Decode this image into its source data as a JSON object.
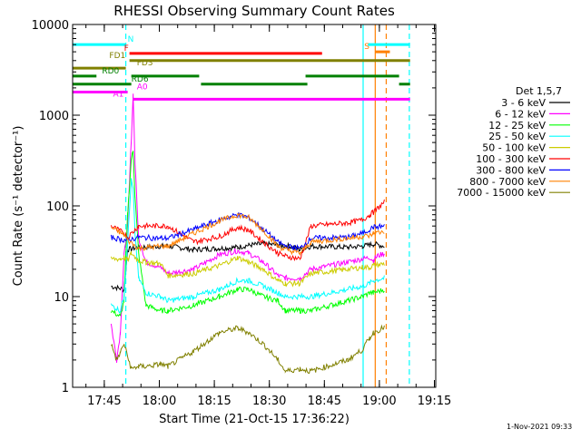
{
  "chart_data": {
    "type": "line",
    "title": "RHESSI Observing Summary Count Rates",
    "xlabel": "Start Time (21-Oct-15 17:36:22)",
    "ylabel": "Count Rate (s⁻¹ detector⁻¹)",
    "ylog": true,
    "ylim": [
      1,
      10000
    ],
    "xlim_minutes_after_start": [
      0,
      99
    ],
    "x_tick_labels": [
      "17:45",
      "18:00",
      "18:15",
      "18:30",
      "18:45",
      "19:00",
      "19:15"
    ],
    "y_tick_labels": [
      "1",
      "10",
      "100",
      "1000",
      "10000"
    ],
    "legend_title": "Det 1,5,7",
    "legend_placement": "right",
    "timestamp": "1-Nov-2021 09:33",
    "series": [
      {
        "name": "3 - 6 keV",
        "color": "#000000",
        "points": [
          [
            10.5,
            13
          ],
          [
            14,
            12
          ],
          [
            15,
            33
          ],
          [
            18,
            35
          ],
          [
            24,
            36
          ],
          [
            26,
            36
          ],
          [
            33,
            33
          ],
          [
            40,
            34
          ],
          [
            45,
            35
          ],
          [
            48,
            37
          ],
          [
            52,
            38
          ],
          [
            56,
            37
          ],
          [
            59,
            36
          ],
          [
            62,
            33
          ],
          [
            65,
            36
          ],
          [
            75,
            35
          ],
          [
            79,
            36
          ],
          [
            81,
            37
          ],
          [
            82,
            38
          ],
          [
            85,
            36
          ]
        ]
      },
      {
        "name": "6 - 12 keV",
        "color": "#ff00ff",
        "points": [
          [
            10.5,
            5
          ],
          [
            12,
            2
          ],
          [
            13,
            4
          ],
          [
            14,
            28
          ],
          [
            15,
            60
          ],
          [
            15.8,
            350
          ],
          [
            16.5,
            1700
          ],
          [
            17,
            300
          ],
          [
            18,
            45
          ],
          [
            20,
            24
          ],
          [
            24,
            21
          ],
          [
            26,
            18
          ],
          [
            33,
            20
          ],
          [
            40,
            29
          ],
          [
            45,
            32
          ],
          [
            48,
            30
          ],
          [
            52,
            24
          ],
          [
            56,
            17
          ],
          [
            58,
            16
          ],
          [
            62,
            16
          ],
          [
            65,
            20
          ],
          [
            75,
            24
          ],
          [
            79,
            26
          ],
          [
            81,
            27
          ],
          [
            82,
            25
          ],
          [
            83,
            28
          ],
          [
            85,
            30
          ]
        ]
      },
      {
        "name": "12 - 25 keV",
        "color": "#00ff00",
        "points": [
          [
            10.5,
            7
          ],
          [
            13,
            6
          ],
          [
            14,
            9
          ],
          [
            15,
            80
          ],
          [
            16,
            330
          ],
          [
            16.5,
            400
          ],
          [
            17,
            130
          ],
          [
            18,
            30
          ],
          [
            20,
            8
          ],
          [
            24,
            7
          ],
          [
            26,
            7
          ],
          [
            33,
            8
          ],
          [
            40,
            10
          ],
          [
            45,
            12
          ],
          [
            48,
            12
          ],
          [
            52,
            10
          ],
          [
            56,
            9
          ],
          [
            58,
            7
          ],
          [
            62,
            7
          ],
          [
            65,
            7
          ],
          [
            75,
            9
          ],
          [
            79,
            10
          ],
          [
            81,
            11
          ],
          [
            82,
            11
          ],
          [
            85,
            12
          ]
        ]
      },
      {
        "name": "25 - 50 keV",
        "color": "#00ffff",
        "points": [
          [
            10.5,
            8
          ],
          [
            13,
            7
          ],
          [
            14,
            10
          ],
          [
            15,
            40
          ],
          [
            16,
            190
          ],
          [
            16.5,
            150
          ],
          [
            17,
            50
          ],
          [
            18,
            16
          ],
          [
            20,
            11
          ],
          [
            24,
            10
          ],
          [
            26,
            9
          ],
          [
            33,
            10
          ],
          [
            40,
            12
          ],
          [
            45,
            15
          ],
          [
            48,
            15
          ],
          [
            52,
            13
          ],
          [
            56,
            11
          ],
          [
            58,
            10
          ],
          [
            62,
            10
          ],
          [
            65,
            10
          ],
          [
            75,
            12
          ],
          [
            79,
            13
          ],
          [
            81,
            14
          ],
          [
            82,
            15
          ],
          [
            85,
            16
          ]
        ]
      },
      {
        "name": "50 - 100 keV",
        "color": "#cccc00",
        "points": [
          [
            10.5,
            26
          ],
          [
            13,
            26
          ],
          [
            14,
            27
          ],
          [
            15,
            25
          ],
          [
            16,
            30
          ],
          [
            18,
            25
          ],
          [
            20,
            24
          ],
          [
            24,
            23
          ],
          [
            26,
            17
          ],
          [
            33,
            18
          ],
          [
            40,
            22
          ],
          [
            45,
            27
          ],
          [
            48,
            24
          ],
          [
            52,
            20
          ],
          [
            56,
            15
          ],
          [
            58,
            14
          ],
          [
            62,
            14
          ],
          [
            65,
            18
          ],
          [
            75,
            20
          ],
          [
            79,
            21
          ],
          [
            81,
            21
          ],
          [
            82,
            22
          ],
          [
            85,
            23
          ]
        ]
      },
      {
        "name": "100 - 300 keV",
        "color": "#ff0000",
        "points": [
          [
            10.5,
            60
          ],
          [
            14,
            50
          ],
          [
            15,
            45
          ],
          [
            18,
            60
          ],
          [
            24,
            60
          ],
          [
            26,
            60
          ],
          [
            33,
            40
          ],
          [
            40,
            46
          ],
          [
            45,
            58
          ],
          [
            48,
            54
          ],
          [
            52,
            40
          ],
          [
            56,
            30
          ],
          [
            58,
            28
          ],
          [
            62,
            26
          ],
          [
            65,
            60
          ],
          [
            75,
            65
          ],
          [
            79,
            70
          ],
          [
            81,
            80
          ],
          [
            82,
            85
          ],
          [
            85,
            110
          ]
        ]
      },
      {
        "name": "300 - 800 keV",
        "color": "#0000ff",
        "points": [
          [
            10.5,
            45
          ],
          [
            14,
            42
          ],
          [
            15,
            42
          ],
          [
            18,
            45
          ],
          [
            24,
            44
          ],
          [
            26,
            44
          ],
          [
            33,
            55
          ],
          [
            40,
            70
          ],
          [
            45,
            80
          ],
          [
            48,
            75
          ],
          [
            52,
            55
          ],
          [
            56,
            40
          ],
          [
            58,
            36
          ],
          [
            62,
            34
          ],
          [
            65,
            44
          ],
          [
            75,
            45
          ],
          [
            79,
            50
          ],
          [
            81,
            55
          ],
          [
            82,
            58
          ],
          [
            85,
            60
          ]
        ]
      },
      {
        "name": "800 - 7000 keV",
        "color": "#ff8000",
        "points": [
          [
            10.5,
            58
          ],
          [
            14,
            48
          ],
          [
            15,
            42
          ],
          [
            18,
            34
          ],
          [
            24,
            36
          ],
          [
            26,
            36
          ],
          [
            33,
            50
          ],
          [
            40,
            68
          ],
          [
            45,
            80
          ],
          [
            48,
            74
          ],
          [
            52,
            54
          ],
          [
            56,
            36
          ],
          [
            58,
            33
          ],
          [
            62,
            30
          ],
          [
            65,
            40
          ],
          [
            75,
            44
          ],
          [
            79,
            46
          ],
          [
            81,
            47
          ],
          [
            82,
            50
          ],
          [
            85,
            52
          ]
        ]
      },
      {
        "name": "7000 - 15000 keV",
        "color": "#808000",
        "points": [
          [
            10.5,
            3
          ],
          [
            12,
            2
          ],
          [
            13,
            2.4
          ],
          [
            14,
            3
          ],
          [
            16,
            1.6
          ],
          [
            18,
            1.7
          ],
          [
            20,
            1.7
          ],
          [
            24,
            1.8
          ],
          [
            26,
            1.7
          ],
          [
            33,
            2.5
          ],
          [
            40,
            4
          ],
          [
            45,
            4.5
          ],
          [
            48,
            4
          ],
          [
            52,
            3
          ],
          [
            56,
            2
          ],
          [
            58,
            1.5
          ],
          [
            62,
            1.6
          ],
          [
            65,
            1.5
          ],
          [
            75,
            2
          ],
          [
            79,
            2.6
          ],
          [
            81,
            3.5
          ],
          [
            82,
            4
          ],
          [
            85,
            4.6
          ]
        ]
      }
    ],
    "flag_bars": [
      {
        "label": "N",
        "color": "#00ffff",
        "y": 6000,
        "label_x": 15,
        "segments": [
          [
            0,
            14.5
          ],
          [
            80.5,
            92
          ]
        ]
      },
      {
        "label": "S",
        "color": "#ff8000",
        "y": 5000,
        "label_x": 79.5,
        "segments": [
          [
            82.5,
            86.5
          ]
        ]
      },
      {
        "label": "F",
        "color": "#ff0000",
        "y": 4800,
        "label_x": 14,
        "segments": [
          [
            15.5,
            68
          ]
        ]
      },
      {
        "label": "FD1",
        "color": "#808000",
        "y": 4000,
        "label_x": 10,
        "segments": [
          [
            15.5,
            92
          ]
        ]
      },
      {
        "label": "FD3",
        "color": "#808000",
        "y": 3300,
        "label_x": 17.5,
        "segments": [
          [
            0,
            14.5
          ]
        ]
      },
      {
        "label": "RD0",
        "color": "#008000",
        "y": 2700,
        "label_x": 8,
        "segments": [
          [
            0,
            6.5
          ],
          [
            16,
            34.5
          ],
          [
            63.5,
            89
          ]
        ]
      },
      {
        "label": "RD6",
        "color": "#008000",
        "y": 2200,
        "label_x": 16,
        "segments": [
          [
            0,
            16
          ],
          [
            35,
            64
          ],
          [
            89,
            92
          ]
        ]
      },
      {
        "label": "A0",
        "color": "#ff00ff",
        "y": 1800,
        "label_x": 17.5,
        "segments": [
          [
            0,
            15
          ]
        ]
      },
      {
        "label": "A1",
        "color": "#ff00ff",
        "y": 1500,
        "label_x": 11,
        "segments": [
          [
            16.5,
            92
          ]
        ]
      }
    ],
    "vertical_markers": [
      {
        "color": "#00ffff",
        "style": "dashed",
        "x": 14.5
      },
      {
        "color": "#00ffff",
        "style": "dashed",
        "x": 91.8
      },
      {
        "color": "#00ffff",
        "style": "solid",
        "x": 79.2
      },
      {
        "color": "#ff8000",
        "style": "solid",
        "x": 82.5
      },
      {
        "color": "#ff8000",
        "style": "dashed",
        "x": 85.5
      }
    ]
  }
}
